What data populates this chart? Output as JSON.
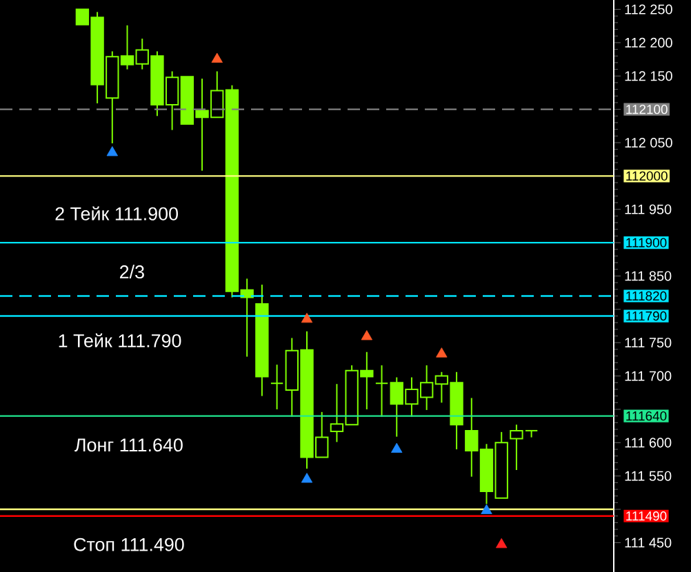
{
  "chart_data": {
    "type": "candlestick",
    "color": "#7fff00",
    "tick_labels": "y",
    "categories": [
      null,
      null,
      null,
      null,
      null,
      null,
      null,
      null,
      null,
      null,
      null,
      null,
      null,
      null,
      null,
      null,
      null,
      null,
      null,
      null,
      null,
      null,
      null,
      null,
      null,
      null,
      null,
      null,
      null,
      null,
      null,
      null,
      null,
      null,
      null,
      null,
      null,
      null,
      null,
      null,
      null
    ],
    "ohlc": [
      null,
      null,
      null,
      null,
      null,
      [
        112250,
        112250,
        112227,
        112227
      ],
      [
        112238,
        112246,
        112109,
        112137
      ],
      [
        112117,
        112187,
        112049,
        112179
      ],
      [
        112180,
        112226,
        112160,
        112167
      ],
      [
        112168,
        112206,
        112160,
        112189
      ],
      [
        112180,
        112187,
        112090,
        112107
      ],
      [
        112107,
        112157,
        112069,
        112148
      ],
      [
        112149,
        112149,
        112078,
        112078
      ],
      [
        112098,
        112146,
        112008,
        112088
      ],
      [
        112088,
        112157,
        112088,
        112128
      ],
      [
        112129,
        112136,
        111818,
        111827
      ],
      [
        111829,
        111846,
        111729,
        111818
      ],
      [
        111808,
        111837,
        111670,
        111699
      ],
      [
        111689,
        111717,
        111650,
        111689
      ],
      [
        111679,
        111757,
        111639,
        111738
      ],
      [
        111739,
        111767,
        111561,
        111578
      ],
      [
        111578,
        111646,
        111578,
        111608
      ],
      [
        111617,
        111688,
        111601,
        111628
      ],
      [
        111627,
        111716,
        111627,
        111708
      ],
      [
        111708,
        111736,
        111650,
        111699
      ],
      [
        111689,
        111716,
        111639,
        111689
      ],
      [
        111690,
        111698,
        111609,
        111658
      ],
      [
        111658,
        111698,
        111639,
        111680
      ],
      [
        111668,
        111716,
        111649,
        111690
      ],
      [
        111688,
        111706,
        111660,
        111700
      ],
      [
        111690,
        111706,
        111590,
        111627
      ],
      [
        111618,
        111667,
        111549,
        111588
      ],
      [
        111590,
        111598,
        111508,
        111527
      ],
      [
        111517,
        111616,
        111517,
        111600
      ],
      [
        111606,
        111627,
        111559,
        111618
      ],
      [
        111618,
        111618,
        111608,
        111618
      ],
      null,
      null,
      null,
      null,
      null
    ],
    "series": [
      {
        "type": "scatter",
        "color": "#ff5a28",
        "marker": "triangle",
        "values": [
          null,
          null,
          null,
          null,
          null,
          null,
          null,
          null,
          null,
          null,
          null,
          null,
          null,
          null,
          112175,
          null,
          null,
          null,
          null,
          null,
          111785,
          null,
          null,
          null,
          111759,
          null,
          null,
          null,
          null,
          111733,
          null,
          null,
          null,
          null,
          null,
          null,
          null,
          null,
          null,
          null,
          null
        ]
      },
      {
        "type": "scatter",
        "color": "#1e88ff",
        "marker": "triangle",
        "values": [
          null,
          null,
          null,
          null,
          null,
          null,
          null,
          112035,
          null,
          null,
          null,
          null,
          null,
          null,
          null,
          null,
          null,
          null,
          null,
          null,
          111545,
          null,
          null,
          null,
          null,
          null,
          111590,
          null,
          null,
          null,
          null,
          null,
          111498,
          null,
          null,
          null,
          null,
          null,
          null,
          null,
          null
        ]
      },
      {
        "type": "scatter",
        "color": "#ff2020",
        "marker": "triangle",
        "values": [
          null,
          null,
          null,
          null,
          null,
          null,
          null,
          null,
          null,
          null,
          null,
          null,
          null,
          null,
          null,
          null,
          null,
          null,
          null,
          null,
          null,
          null,
          null,
          null,
          null,
          null,
          null,
          null,
          null,
          null,
          null,
          null,
          null,
          111447,
          null,
          null,
          null,
          null,
          null,
          null,
          null
        ]
      }
    ],
    "ylim": [
      111406,
      112264
    ],
    "yticks": [
      {
        "value": 111450,
        "label": "111 450"
      },
      {
        "value": 111500,
        "label": null
      },
      {
        "value": 111550,
        "label": "111 550"
      },
      {
        "value": 111600,
        "label": "111 600"
      },
      {
        "value": 111650,
        "label": null
      },
      {
        "value": 111700,
        "label": "111 700"
      },
      {
        "value": 111750,
        "label": "111 750"
      },
      {
        "value": 111800,
        "label": null
      },
      {
        "value": 111850,
        "label": "111 850"
      },
      {
        "value": 111900,
        "label": null
      },
      {
        "value": 111950,
        "label": "111 950"
      },
      {
        "value": 112000,
        "label": null
      },
      {
        "value": 112050,
        "label": "112 050"
      },
      {
        "value": 112100,
        "label": null
      },
      {
        "value": 112150,
        "label": "112 150"
      },
      {
        "value": 112200,
        "label": "112 200"
      },
      {
        "value": 112250,
        "label": "112 250"
      }
    ],
    "ref_lines": [
      {
        "axis": "y",
        "value": 112100,
        "label": "112100",
        "color": "#808080",
        "line_style": "dashed"
      },
      {
        "axis": "y",
        "value": 112000,
        "label": "112000",
        "color": "#ffff80",
        "line_style": "solid"
      },
      {
        "axis": "y",
        "value": 111900,
        "label": "111900",
        "color": "#00e5ff",
        "line_style": "solid"
      },
      {
        "axis": "y",
        "value": 111820,
        "label": "111820",
        "color": "#00e5ff",
        "line_style": "dashed"
      },
      {
        "axis": "y",
        "value": 111790,
        "label": "111790",
        "color": "#00e5ff",
        "line_style": "solid"
      },
      {
        "axis": "y",
        "value": 111640,
        "label": "111640",
        "color": "#20e890",
        "line_style": "solid"
      },
      {
        "axis": "y",
        "value": 111500,
        "label": null,
        "color": "#ffff80",
        "line_style": "solid"
      },
      {
        "axis": "y",
        "value": 111490,
        "label": "111490",
        "color": "#ff0000",
        "line_style": "solid"
      }
    ],
    "annotations": [
      "2 Тейк 111.900",
      "2/3",
      "1 Тейк 111.790",
      "Лонг 111.640",
      "Стоп 111.490"
    ]
  }
}
